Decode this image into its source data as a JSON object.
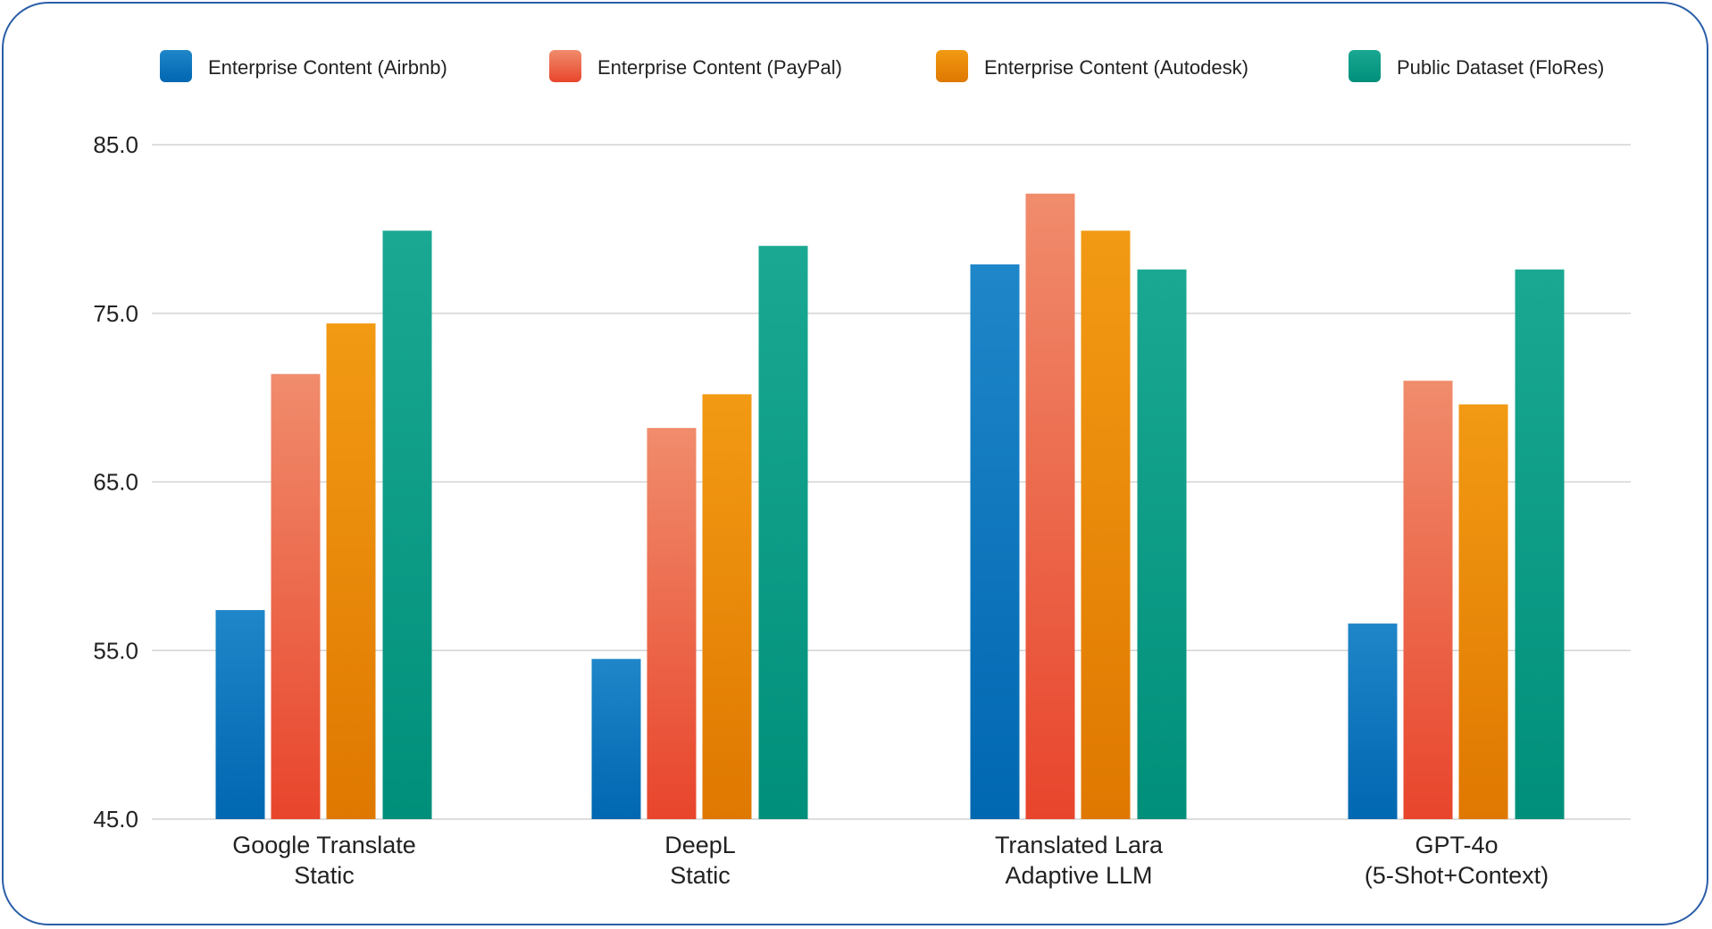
{
  "chart_data": {
    "type": "bar",
    "title": "",
    "xlabel": "",
    "ylabel": "",
    "ylim": [
      45,
      85
    ],
    "yticks": [
      85,
      75,
      65,
      55,
      45
    ],
    "ytick_labels": [
      "85.0",
      "75.0",
      "65.0",
      "55.0",
      "45.0"
    ],
    "grid": true,
    "legend_position": "top",
    "categories": [
      [
        "Google Translate",
        "Static"
      ],
      [
        "DeepL",
        "Static"
      ],
      [
        "Translated Lara",
        "Adaptive LLM"
      ],
      [
        "GPT-4o",
        "(5-Shot+Context)"
      ]
    ],
    "series": [
      {
        "name": "Enterprise Content (Airbnb)",
        "values": [
          57.4,
          54.5,
          77.9,
          56.6
        ],
        "color_top": "#1f86c9",
        "color_bottom": "#0067b1"
      },
      {
        "name": "Enterprise Content (PayPal)",
        "values": [
          71.4,
          68.2,
          82.1,
          71.0
        ],
        "color_top": "#f08c6c",
        "color_bottom": "#e8452c"
      },
      {
        "name": "Enterprise Content (Autodesk)",
        "values": [
          74.4,
          70.2,
          79.9,
          69.6
        ],
        "color_top": "#f29a14",
        "color_bottom": "#df7800"
      },
      {
        "name": "Public Dataset (FloRes)",
        "values": [
          79.9,
          79.0,
          77.6,
          77.6
        ],
        "color_top": "#1aa892",
        "color_bottom": "#008f7a"
      }
    ]
  }
}
